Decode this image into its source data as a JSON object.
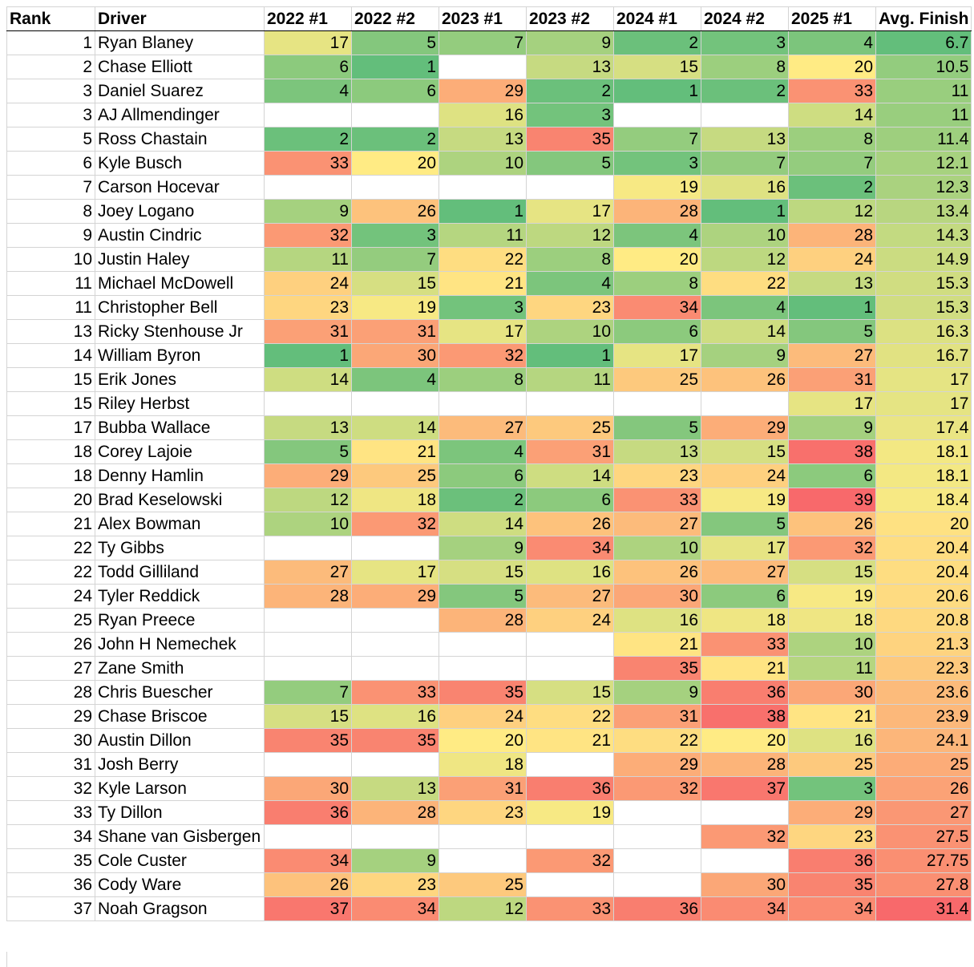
{
  "headers": [
    "Rank",
    "Driver",
    "2022 #1",
    "2022 #2",
    "2023 #1",
    "2023 #2",
    "2024 #1",
    "2024 #2",
    "2025 #1",
    "Avg. Finish"
  ],
  "rows": [
    {
      "rank": "1",
      "driver": "Ryan Blaney",
      "r": [
        "17",
        "5",
        "7",
        "9",
        "2",
        "3",
        "4"
      ],
      "avg": "6.7"
    },
    {
      "rank": "2",
      "driver": "Chase Elliott",
      "r": [
        "6",
        "1",
        "",
        "13",
        "15",
        "8",
        "20"
      ],
      "avg": "10.5"
    },
    {
      "rank": "3",
      "driver": "Daniel Suarez",
      "r": [
        "4",
        "6",
        "29",
        "2",
        "1",
        "2",
        "33"
      ],
      "avg": "11"
    },
    {
      "rank": "3",
      "driver": "AJ Allmendinger",
      "r": [
        "",
        "",
        "16",
        "3",
        "",
        "",
        "14"
      ],
      "avg": "11"
    },
    {
      "rank": "5",
      "driver": "Ross Chastain",
      "r": [
        "2",
        "2",
        "13",
        "35",
        "7",
        "13",
        "8"
      ],
      "avg": "11.4"
    },
    {
      "rank": "6",
      "driver": "Kyle Busch",
      "r": [
        "33",
        "20",
        "10",
        "5",
        "3",
        "7",
        "7"
      ],
      "avg": "12.1"
    },
    {
      "rank": "7",
      "driver": "Carson Hocevar",
      "r": [
        "",
        "",
        "",
        "",
        "19",
        "16",
        "2"
      ],
      "avg": "12.3"
    },
    {
      "rank": "8",
      "driver": "Joey Logano",
      "r": [
        "9",
        "26",
        "1",
        "17",
        "28",
        "1",
        "12"
      ],
      "avg": "13.4"
    },
    {
      "rank": "9",
      "driver": "Austin Cindric",
      "r": [
        "32",
        "3",
        "11",
        "12",
        "4",
        "10",
        "28"
      ],
      "avg": "14.3"
    },
    {
      "rank": "10",
      "driver": "Justin Haley",
      "r": [
        "11",
        "7",
        "22",
        "8",
        "20",
        "12",
        "24"
      ],
      "avg": "14.9"
    },
    {
      "rank": "11",
      "driver": "Michael McDowell",
      "r": [
        "24",
        "15",
        "21",
        "4",
        "8",
        "22",
        "13"
      ],
      "avg": "15.3"
    },
    {
      "rank": "11",
      "driver": "Christopher Bell",
      "r": [
        "23",
        "19",
        "3",
        "23",
        "34",
        "4",
        "1"
      ],
      "avg": "15.3"
    },
    {
      "rank": "13",
      "driver": "Ricky Stenhouse Jr",
      "r": [
        "31",
        "31",
        "17",
        "10",
        "6",
        "14",
        "5"
      ],
      "avg": "16.3"
    },
    {
      "rank": "14",
      "driver": "William Byron",
      "r": [
        "1",
        "30",
        "32",
        "1",
        "17",
        "9",
        "27"
      ],
      "avg": "16.7"
    },
    {
      "rank": "15",
      "driver": "Erik Jones",
      "r": [
        "14",
        "4",
        "8",
        "11",
        "25",
        "26",
        "31"
      ],
      "avg": "17"
    },
    {
      "rank": "15",
      "driver": "Riley Herbst",
      "r": [
        "",
        "",
        "",
        "",
        "",
        "",
        "17"
      ],
      "avg": "17"
    },
    {
      "rank": "17",
      "driver": "Bubba Wallace",
      "r": [
        "13",
        "14",
        "27",
        "25",
        "5",
        "29",
        "9"
      ],
      "avg": "17.4"
    },
    {
      "rank": "18",
      "driver": "Corey Lajoie",
      "r": [
        "5",
        "21",
        "4",
        "31",
        "13",
        "15",
        "38"
      ],
      "avg": "18.1"
    },
    {
      "rank": "18",
      "driver": "Denny Hamlin",
      "r": [
        "29",
        "25",
        "6",
        "14",
        "23",
        "24",
        "6"
      ],
      "avg": "18.1"
    },
    {
      "rank": "20",
      "driver": "Brad Keselowski",
      "r": [
        "12",
        "18",
        "2",
        "6",
        "33",
        "19",
        "39"
      ],
      "avg": "18.4"
    },
    {
      "rank": "21",
      "driver": "Alex Bowman",
      "r": [
        "10",
        "32",
        "14",
        "26",
        "27",
        "5",
        "26"
      ],
      "avg": "20"
    },
    {
      "rank": "22",
      "driver": "Ty Gibbs",
      "r": [
        "",
        "",
        "9",
        "34",
        "10",
        "17",
        "32"
      ],
      "avg": "20.4"
    },
    {
      "rank": "22",
      "driver": "Todd Gilliland",
      "r": [
        "27",
        "17",
        "15",
        "16",
        "26",
        "27",
        "15"
      ],
      "avg": "20.4"
    },
    {
      "rank": "24",
      "driver": "Tyler Reddick",
      "r": [
        "28",
        "29",
        "5",
        "27",
        "30",
        "6",
        "19"
      ],
      "avg": "20.6"
    },
    {
      "rank": "25",
      "driver": "Ryan Preece",
      "r": [
        "",
        "",
        "28",
        "24",
        "16",
        "18",
        "18"
      ],
      "avg": "20.8"
    },
    {
      "rank": "26",
      "driver": "John H Nemechek",
      "r": [
        "",
        "",
        "",
        "",
        "21",
        "33",
        "10"
      ],
      "avg": "21.3"
    },
    {
      "rank": "27",
      "driver": "Zane Smith",
      "r": [
        "",
        "",
        "",
        "",
        "35",
        "21",
        "11"
      ],
      "avg": "22.3"
    },
    {
      "rank": "28",
      "driver": "Chris Buescher",
      "r": [
        "7",
        "33",
        "35",
        "15",
        "9",
        "36",
        "30"
      ],
      "avg": "23.6"
    },
    {
      "rank": "29",
      "driver": "Chase Briscoe",
      "r": [
        "15",
        "16",
        "24",
        "22",
        "31",
        "38",
        "21"
      ],
      "avg": "23.9"
    },
    {
      "rank": "30",
      "driver": "Austin Dillon",
      "r": [
        "35",
        "35",
        "20",
        "21",
        "22",
        "20",
        "16"
      ],
      "avg": "24.1"
    },
    {
      "rank": "31",
      "driver": "Josh Berry",
      "r": [
        "",
        "",
        "18",
        "",
        "29",
        "28",
        "25"
      ],
      "avg": "25"
    },
    {
      "rank": "32",
      "driver": "Kyle Larson",
      "r": [
        "30",
        "13",
        "31",
        "36",
        "32",
        "37",
        "3"
      ],
      "avg": "26"
    },
    {
      "rank": "33",
      "driver": "Ty Dillon",
      "r": [
        "36",
        "28",
        "23",
        "19",
        "",
        "",
        "29"
      ],
      "avg": "27"
    },
    {
      "rank": "34",
      "driver": "Shane van Gisbergen",
      "r": [
        "",
        "",
        "",
        "",
        "",
        "32",
        "23"
      ],
      "avg": "27.5"
    },
    {
      "rank": "35",
      "driver": "Cole Custer",
      "r": [
        "34",
        "9",
        "",
        "32",
        "",
        "",
        "36"
      ],
      "avg": "27.75"
    },
    {
      "rank": "36",
      "driver": "Cody Ware",
      "r": [
        "26",
        "23",
        "25",
        "",
        "",
        "30",
        "35"
      ],
      "avg": "27.8"
    },
    {
      "rank": "37",
      "driver": "Noah Gragson",
      "r": [
        "37",
        "34",
        "12",
        "33",
        "36",
        "34",
        "34"
      ],
      "avg": "31.4"
    }
  ],
  "colors": {
    "scale_low": "#63be7b",
    "scale_mid": "#ffeb84",
    "scale_high": "#f8696b",
    "grid_line": "#d4d4d4",
    "header_border": "#000000"
  }
}
